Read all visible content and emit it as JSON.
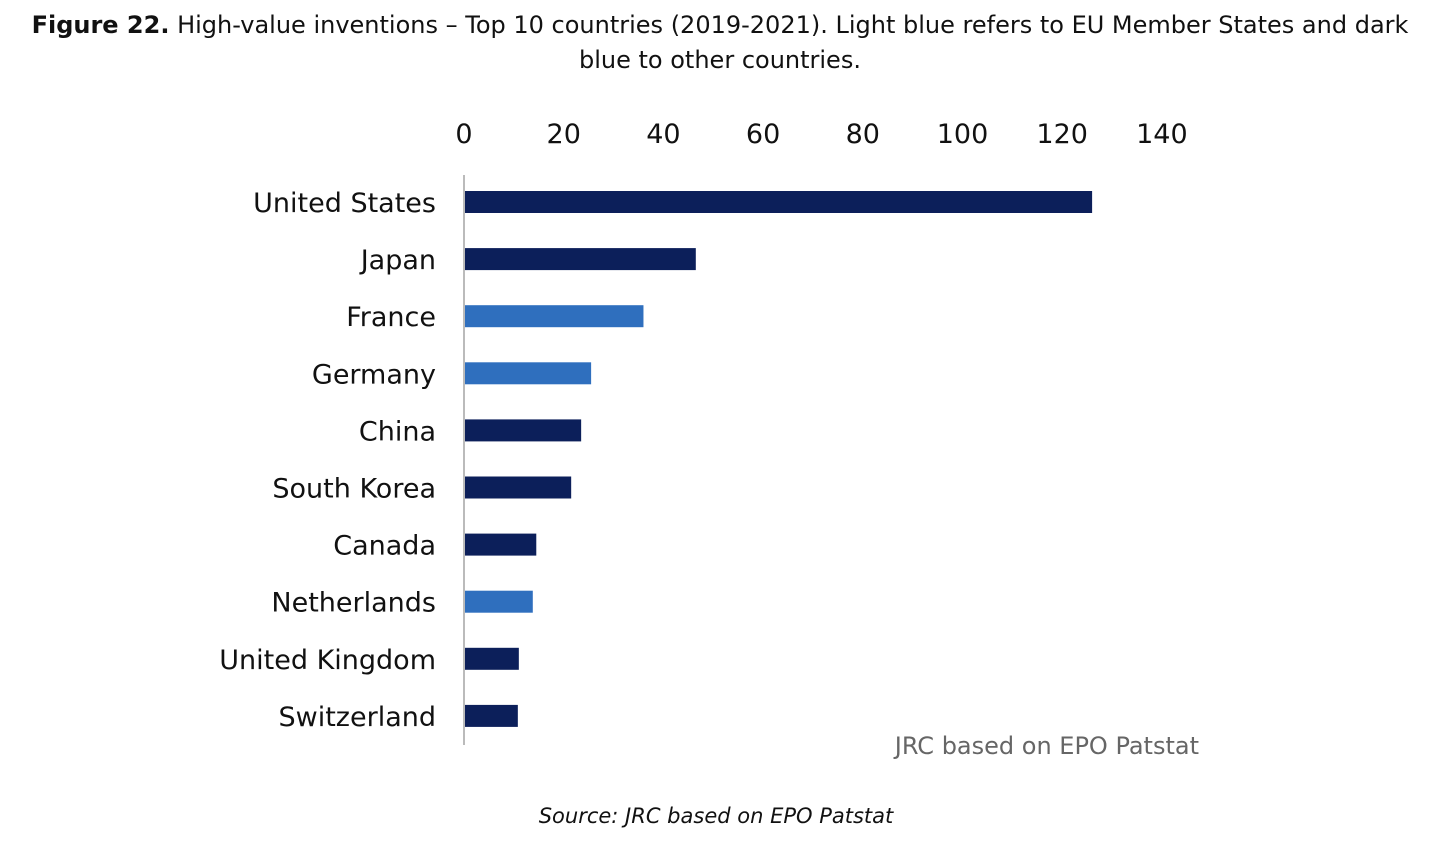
{
  "caption": {
    "figure_label": "Figure 22.",
    "text": "High-value inventions – Top 10 countries (2019-2021). Light blue refers to EU Member States and dark blue to other countries."
  },
  "colors": {
    "eu": "#2f6fbe",
    "other": "#0c1f5a",
    "axis": "#bbbbbb"
  },
  "chart_data": {
    "type": "bar",
    "orientation": "horizontal",
    "x_axis_position": "top",
    "categories": [
      "United States",
      "Japan",
      "France",
      "Germany",
      "China",
      "South Korea",
      "Canada",
      "Netherlands",
      "United Kingdom",
      "Switzerland"
    ],
    "values": [
      126,
      46.5,
      36,
      25.5,
      23.5,
      21.5,
      14.5,
      13.8,
      11,
      10.8
    ],
    "group": [
      "other",
      "other",
      "eu",
      "eu",
      "other",
      "other",
      "other",
      "eu",
      "other",
      "other"
    ],
    "xlim": [
      0,
      140
    ],
    "xticks": [
      0,
      20,
      40,
      60,
      80,
      100,
      120,
      140
    ],
    "grid": false,
    "annotation": "JRC based on EPO Patstat"
  },
  "source": "Source: JRC based on EPO Patstat"
}
